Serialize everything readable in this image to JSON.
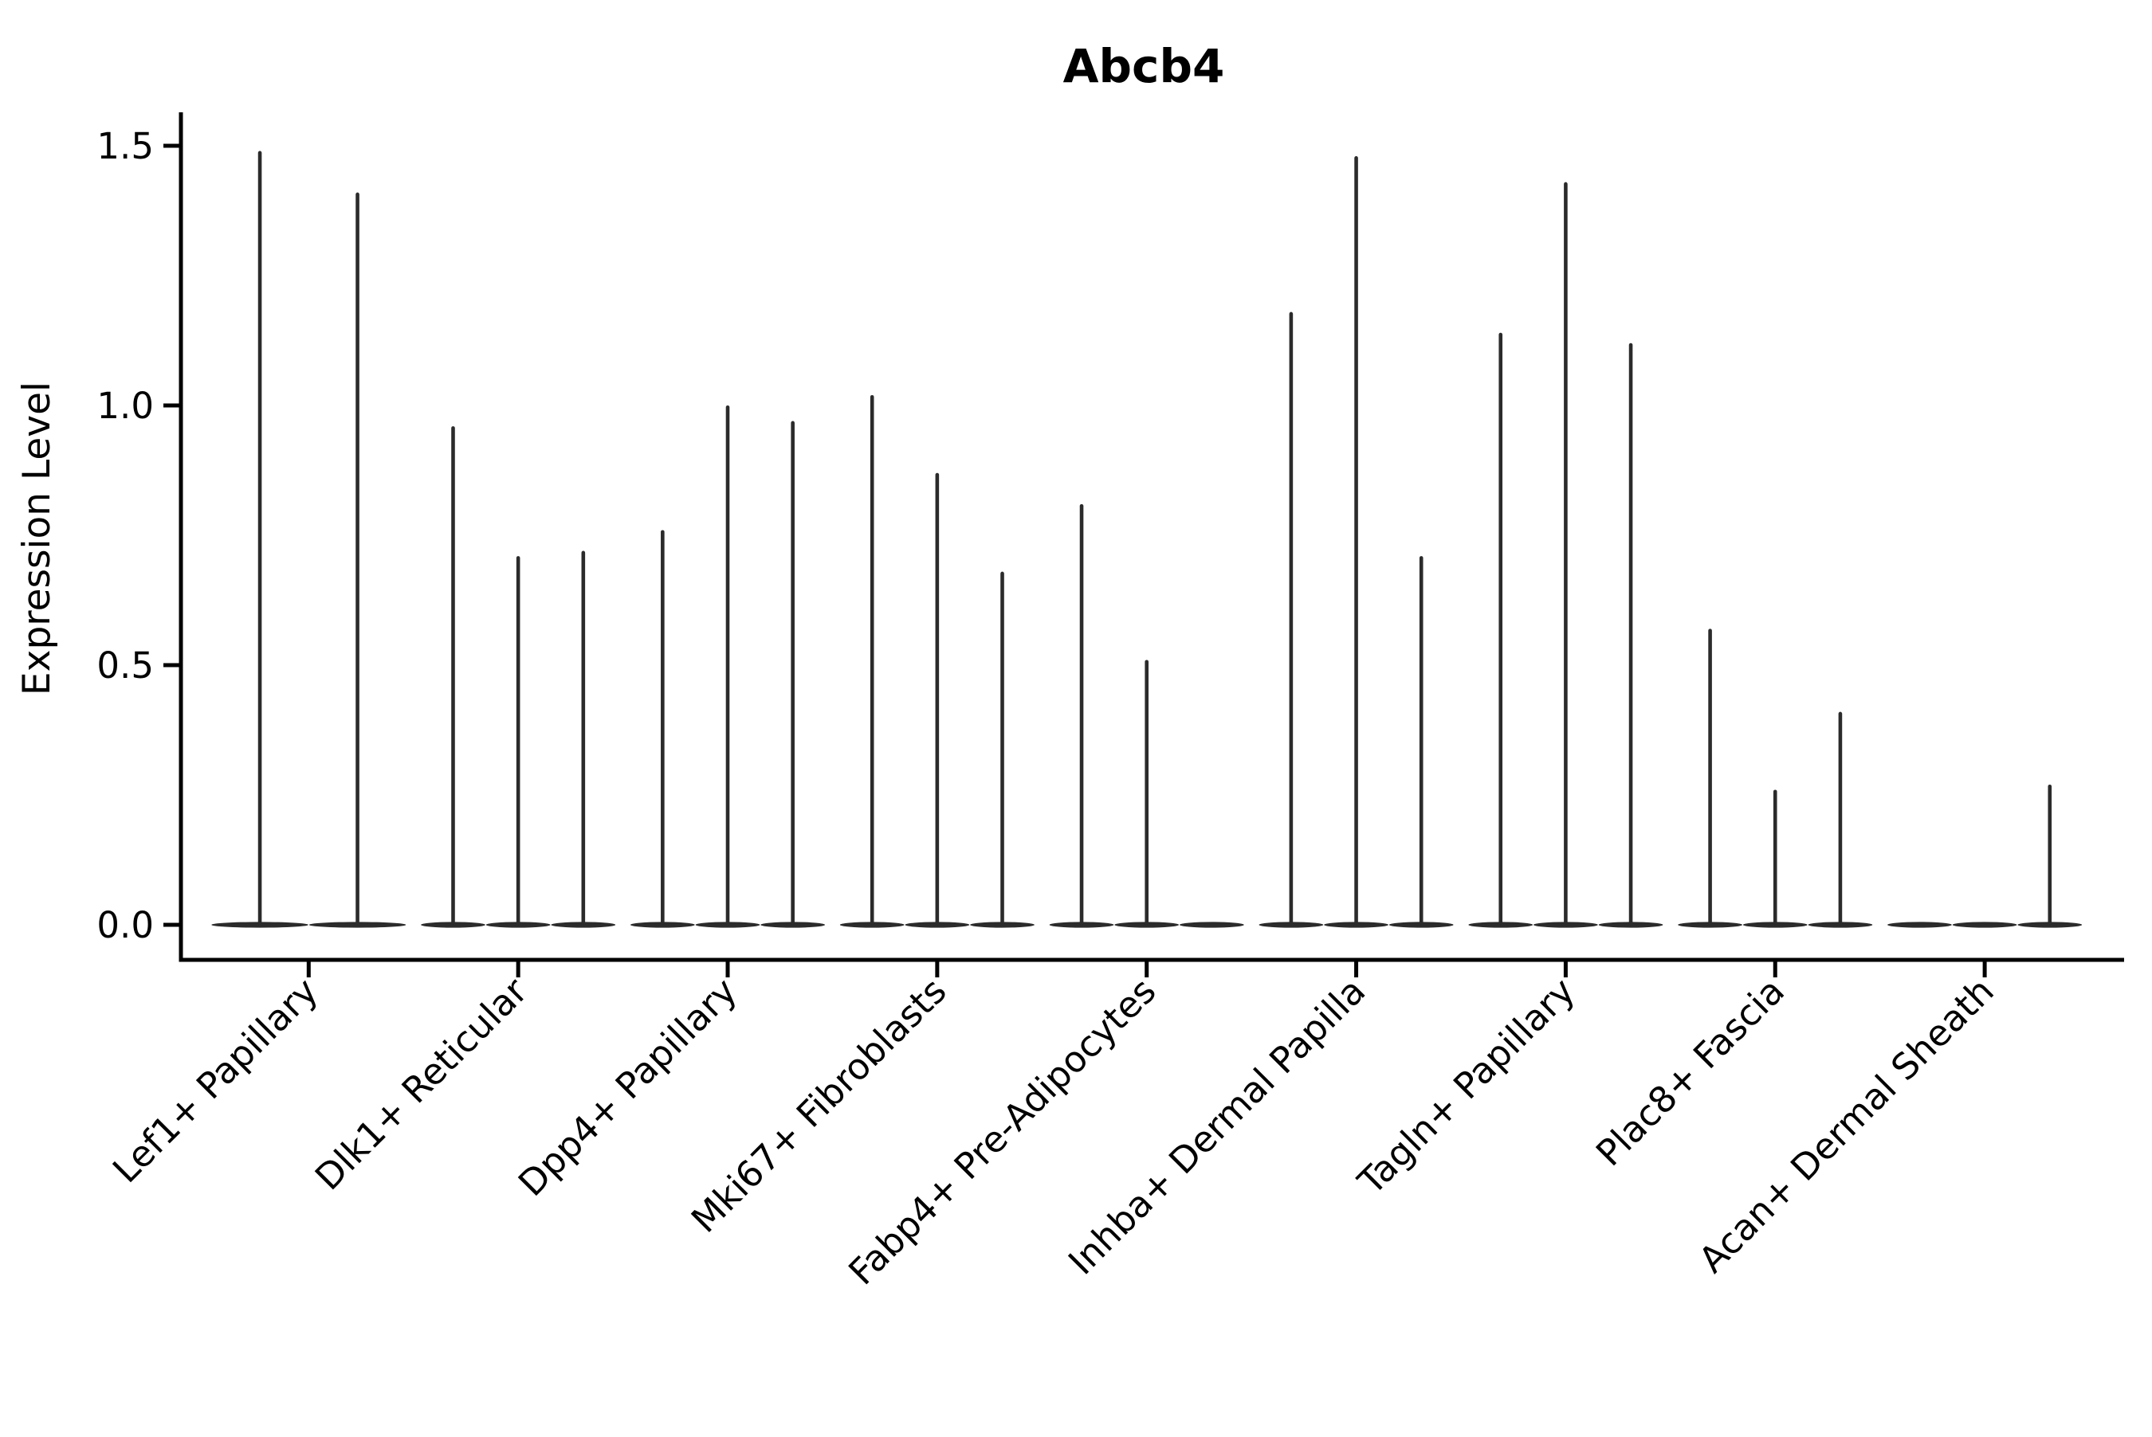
{
  "chart_data": {
    "type": "violin",
    "title": "Abcb4",
    "xlabel": "",
    "ylabel": "Expression Level",
    "ylim": [
      0,
      1.5
    ],
    "yticks": [
      {
        "value": 0.0,
        "label": "0.0"
      },
      {
        "value": 0.5,
        "label": "0.5"
      },
      {
        "value": 1.0,
        "label": "1.0"
      },
      {
        "value": 1.5,
        "label": "1.5"
      }
    ],
    "grid": false,
    "legend": "none",
    "style_note": "Seurat/scanpy-style violin plot; expression concentrated at 0 so each violin renders as a flat body at 0 with a single hairline spike up to the max expression value",
    "categories": [
      "Lef1+ Papillary",
      "Dlk1+ Reticular",
      "Dpp4+ Papillary",
      "Mki67+ Fibroblasts",
      "Fabp4+ Pre-Adipocytes",
      "Inhba+ Dermal Papilla",
      "Tagln+ Papillary",
      "Plac8+ Fascia",
      "Acan+ Dermal Sheath"
    ],
    "groups": [
      {
        "label": "Lef1+ Papillary",
        "violin_max_values": [
          1.49,
          1.41
        ]
      },
      {
        "label": "Dlk1+ Reticular",
        "violin_max_values": [
          0.96,
          0.71,
          0.72
        ]
      },
      {
        "label": "Dpp4+ Papillary",
        "violin_max_values": [
          0.76,
          1.0,
          0.97
        ]
      },
      {
        "label": "Mki67+ Fibroblasts",
        "violin_max_values": [
          1.02,
          0.87,
          0.68
        ]
      },
      {
        "label": "Fabp4+ Pre-Adipocytes",
        "violin_max_values": [
          0.81,
          0.51,
          0.0
        ]
      },
      {
        "label": "Inhba+ Dermal Papilla",
        "violin_max_values": [
          1.18,
          1.48,
          0.71
        ]
      },
      {
        "label": "Tagln+ Papillary",
        "violin_max_values": [
          1.14,
          1.43,
          1.12
        ]
      },
      {
        "label": "Plac8+ Fascia",
        "violin_max_values": [
          0.57,
          0.26,
          0.41
        ]
      },
      {
        "label": "Acan+ Dermal Sheath",
        "violin_max_values": [
          0.0,
          0.0,
          0.27
        ]
      }
    ],
    "colors": {
      "violin": "#2b2b2b",
      "axis": "#000000",
      "background": "#ffffff"
    }
  }
}
